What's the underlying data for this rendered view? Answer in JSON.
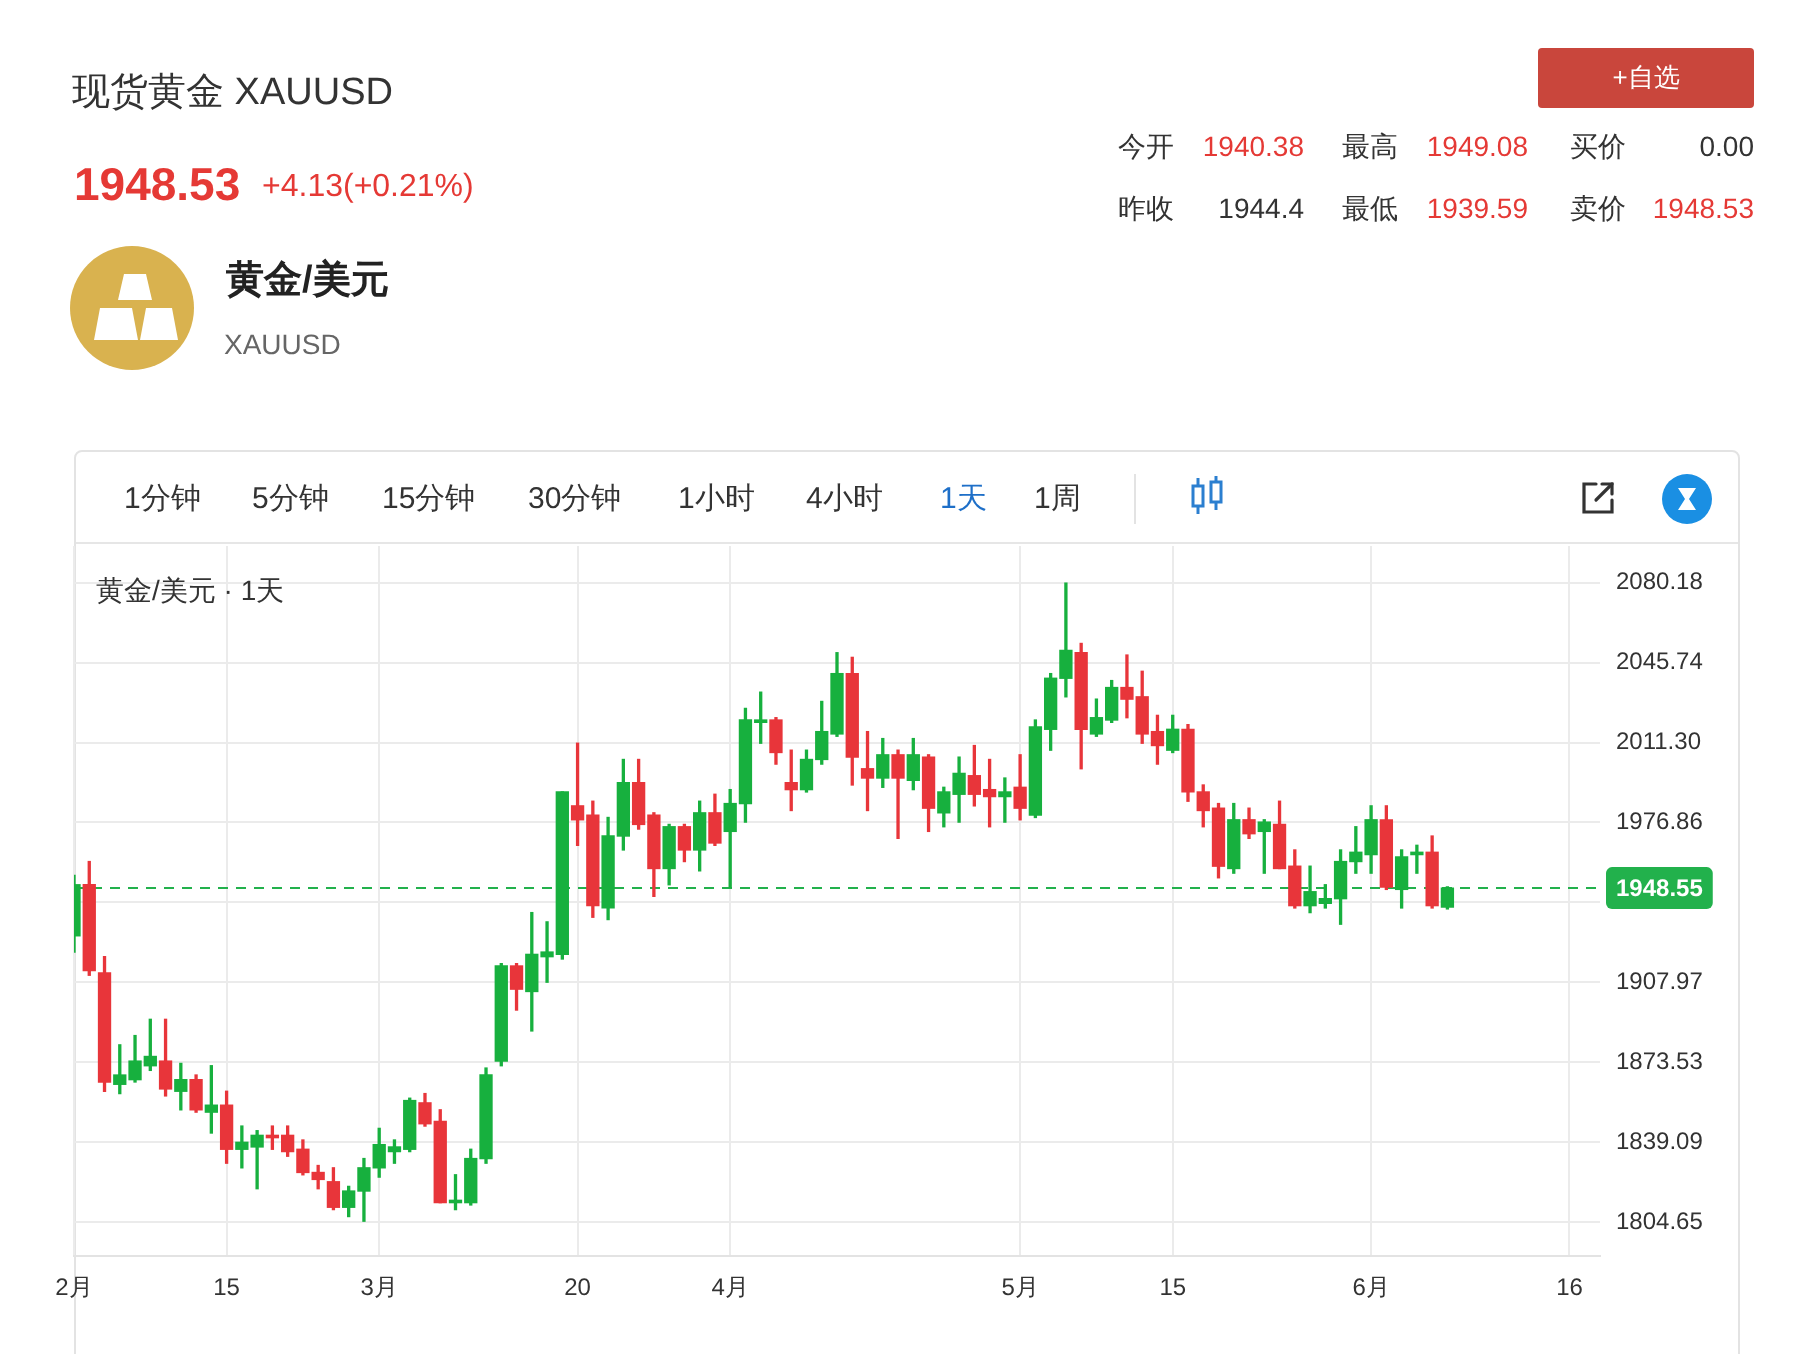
{
  "chart_data": {
    "type": "candlestick",
    "title": "现货黄金 XAUUSD",
    "subtitle": "黄金/美元 · 1天",
    "annotations": [
      "1948.53",
      "+4.13(+0.21%)",
      "今开",
      "1940.38",
      "最高",
      "1949.08",
      "买价",
      "0.00",
      "昨收",
      "1944.4",
      "最低",
      "1939.59",
      "卖价",
      "1948.53",
      "黄金/美元",
      "XAUUSD",
      "+自选",
      "1分钟",
      "5分钟",
      "15分钟",
      "30分钟",
      "1小时",
      "4小时",
      "1天",
      "1周"
    ],
    "categories": [
      "2月",
      null,
      null,
      null,
      null,
      null,
      null,
      null,
      null,
      null,
      "15",
      null,
      null,
      null,
      null,
      null,
      null,
      null,
      null,
      null,
      "3月",
      null,
      null,
      null,
      null,
      null,
      null,
      null,
      null,
      null,
      null,
      null,
      null,
      "20",
      null,
      null,
      null,
      null,
      null,
      null,
      null,
      null,
      null,
      "4月",
      null,
      null,
      null,
      null,
      null,
      null,
      null,
      null,
      null,
      null,
      null,
      null,
      null,
      null,
      null,
      null,
      null,
      null,
      "5月",
      null,
      null,
      null,
      null,
      null,
      null,
      null,
      null,
      null,
      "15",
      null,
      null,
      null,
      null,
      null,
      null,
      null,
      null,
      null,
      null,
      null,
      null,
      "6月",
      null,
      null,
      null,
      null,
      null,
      null,
      null,
      null,
      null,
      null,
      null,
      null,
      "16",
      null,
      null
    ],
    "ohlc": [
      [
        1928,
        1954,
        1921,
        1950
      ],
      [
        1950,
        1960,
        1911,
        1913
      ],
      [
        1912,
        1919,
        1861,
        1865
      ],
      [
        1864,
        1881,
        1860,
        1868
      ],
      [
        1866,
        1885,
        1865,
        1874
      ],
      [
        1872,
        1892,
        1870,
        1876
      ],
      [
        1874,
        1892,
        1859,
        1862
      ],
      [
        1861,
        1873,
        1853,
        1866
      ],
      [
        1866,
        1868,
        1852,
        1853
      ],
      [
        1852,
        1872,
        1843,
        1855
      ],
      [
        1855,
        1861,
        1830,
        1836
      ],
      [
        1836,
        1846,
        1828,
        1839
      ],
      [
        1837,
        1844,
        1819,
        1842
      ],
      [
        1842,
        1846,
        1836,
        1841
      ],
      [
        1842,
        1846,
        1833,
        1835
      ],
      [
        1836,
        1840,
        1825,
        1826
      ],
      [
        1826,
        1829,
        1819,
        1823
      ],
      [
        1822,
        1828,
        1810,
        1811
      ],
      [
        1811,
        1820,
        1807,
        1818
      ],
      [
        1818,
        1832,
        1805,
        1828
      ],
      [
        1828,
        1845,
        1824,
        1838
      ],
      [
        1835,
        1840,
        1830,
        1837
      ],
      [
        1836,
        1858,
        1835,
        1857
      ],
      [
        1856,
        1860,
        1846,
        1847
      ],
      [
        1848,
        1853,
        1813,
        1813
      ],
      [
        1813,
        1825,
        1810,
        1814
      ],
      [
        1813,
        1836,
        1812,
        1832
      ],
      [
        1832,
        1871,
        1830,
        1868
      ],
      [
        1874,
        1916,
        1872,
        1915
      ],
      [
        1915,
        1916,
        1896,
        1905
      ],
      [
        1904,
        1938,
        1887,
        1920
      ],
      [
        1919,
        1934,
        1908,
        1921
      ],
      [
        1920,
        1990,
        1918,
        1990
      ],
      [
        1984,
        2011,
        1967,
        1978
      ],
      [
        1980,
        1986,
        1936,
        1941
      ],
      [
        1940,
        1979,
        1935,
        1971
      ],
      [
        1971,
        2004,
        1965,
        1994
      ],
      [
        1994,
        2004,
        1974,
        1976
      ],
      [
        1980,
        1981,
        1945,
        1957
      ],
      [
        1957,
        1976,
        1950,
        1975
      ],
      [
        1975,
        1976,
        1960,
        1965
      ],
      [
        1965,
        1986,
        1956,
        1981
      ],
      [
        1981,
        1989,
        1967,
        1968
      ],
      [
        1973,
        1991,
        1949,
        1985
      ],
      [
        1985,
        2026,
        1977,
        2021
      ],
      [
        2020,
        2033,
        2011,
        2021
      ],
      [
        2021,
        2022,
        2002,
        2007
      ],
      [
        1994,
        2008,
        1982,
        1991
      ],
      [
        1991,
        2008,
        1990,
        2004
      ],
      [
        2004,
        2029,
        2002,
        2016
      ],
      [
        2015,
        2050,
        2014,
        2041
      ],
      [
        2041,
        2048,
        1993,
        2005
      ],
      [
        2000,
        2016,
        1982,
        1996
      ],
      [
        1996,
        2013,
        1992,
        2006
      ],
      [
        2006,
        2008,
        1970,
        1996
      ],
      [
        1995,
        2013,
        1991,
        2006
      ],
      [
        2005,
        2006,
        1973,
        1983
      ],
      [
        1981,
        1992,
        1975,
        1990
      ],
      [
        1989,
        2005,
        1977,
        1998
      ],
      [
        1997,
        2010,
        1984,
        1989
      ],
      [
        1991,
        2004,
        1975,
        1988
      ],
      [
        1988,
        1996,
        1977,
        1990
      ],
      [
        1992,
        2006,
        1978,
        1983
      ],
      [
        1980,
        2021,
        1979,
        2018
      ],
      [
        2017,
        2041,
        2008,
        2039
      ],
      [
        2039,
        2080,
        2031,
        2051
      ],
      [
        2050,
        2054,
        2000,
        2017
      ],
      [
        2015,
        2030,
        2014,
        2022
      ],
      [
        2021,
        2038,
        2020,
        2035
      ],
      [
        2035,
        2049,
        2022,
        2030
      ],
      [
        2031,
        2042,
        2011,
        2015
      ],
      [
        2016,
        2023,
        2002,
        2010
      ],
      [
        2008,
        2023,
        2007,
        2017
      ],
      [
        2017,
        2019,
        1986,
        1990
      ],
      [
        1990,
        1993,
        1975,
        1982
      ],
      [
        1983,
        1985,
        1953,
        1958
      ],
      [
        1957,
        1985,
        1955,
        1978
      ],
      [
        1978,
        1983,
        1970,
        1972
      ],
      [
        1973,
        1978,
        1955,
        1977
      ],
      [
        1976,
        1986,
        1957,
        1957
      ],
      [
        1958,
        1965,
        1940,
        1941
      ],
      [
        1941,
        1958,
        1938,
        1947
      ],
      [
        1942,
        1950,
        1940,
        1944
      ],
      [
        1944,
        1965,
        1933,
        1960
      ],
      [
        1960,
        1975,
        1955,
        1964
      ],
      [
        1963,
        1984,
        1955,
        1978
      ],
      [
        1978,
        1984,
        1948,
        1949
      ],
      [
        1948,
        1965,
        1940,
        1962
      ],
      [
        1963,
        1967,
        1955,
        1964
      ],
      [
        1964,
        1971,
        1940,
        1941
      ],
      [
        1940.38,
        1949.08,
        1939.59,
        1948.53
      ],
      null,
      null,
      null,
      null,
      null,
      null,
      null,
      null,
      null,
      null
    ],
    "colors": [
      "#17b03e",
      "#e8353a",
      "#e8353a",
      "#17b03e",
      "#17b03e",
      "#17b03e",
      "#e8353a",
      "#17b03e",
      "#e8353a",
      "#17b03e",
      "#e8353a",
      "#17b03e",
      "#17b03e",
      "#e8353a",
      "#e8353a",
      "#e8353a",
      "#e8353a",
      "#e8353a",
      "#17b03e",
      "#17b03e",
      "#17b03e",
      "#17b03e",
      "#17b03e",
      "#e8353a",
      "#e8353a",
      "#17b03e",
      "#17b03e",
      "#17b03e",
      "#17b03e",
      "#e8353a",
      "#17b03e",
      "#17b03e",
      "#17b03e",
      "#e8353a",
      "#e8353a",
      "#17b03e",
      "#17b03e",
      "#e8353a",
      "#e8353a",
      "#17b03e",
      "#e8353a",
      "#17b03e",
      "#e8353a",
      "#17b03e",
      "#17b03e",
      "#17b03e",
      "#e8353a",
      "#e8353a",
      "#17b03e",
      "#17b03e",
      "#17b03e",
      "#e8353a",
      "#e8353a",
      "#17b03e",
      "#e8353a",
      "#17b03e",
      "#e8353a",
      "#17b03e",
      "#17b03e",
      "#e8353a",
      "#e8353a",
      "#17b03e",
      "#e8353a",
      "#17b03e",
      "#17b03e",
      "#17b03e",
      "#e8353a",
      "#17b03e",
      "#17b03e",
      "#e8353a",
      "#e8353a",
      "#e8353a",
      "#17b03e",
      "#e8353a",
      "#e8353a",
      "#e8353a",
      "#17b03e",
      "#e8353a",
      "#17b03e",
      "#e8353a",
      "#e8353a",
      "#17b03e",
      "#17b03e",
      "#17b03e",
      "#17b03e",
      "#17b03e",
      "#e8353a",
      "#17b03e",
      "#17b03e",
      "#e8353a",
      "#17b03e",
      null,
      null,
      null,
      null,
      null,
      null,
      null,
      null,
      null,
      null
    ],
    "ylim": [
      1790,
      2096
    ],
    "yticks": [
      1804.65,
      1839.09,
      1873.53,
      1907.97,
      {
        "value": 1942.41,
        "label": null
      },
      1976.86,
      {
        "value": 2011.3,
        "label": "2011.30"
      },
      2045.74,
      2080.18
    ],
    "grid": true,
    "ref_lines": [
      {
        "axis": "y",
        "value": 1948.55,
        "label": "1948.55",
        "color": "#22b14c",
        "line_style": "dashed"
      }
    ]
  }
}
